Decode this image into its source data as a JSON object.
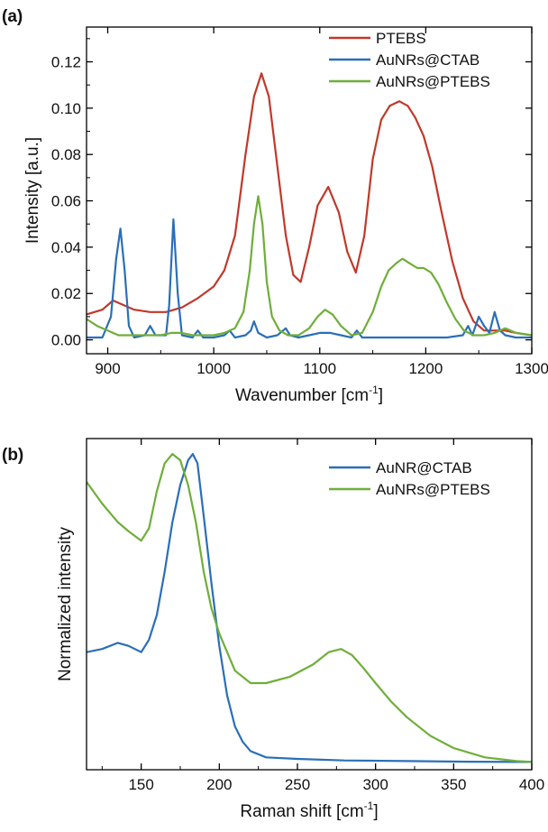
{
  "colors": {
    "red": "#c0392b",
    "blue": "#2a6fb8",
    "green": "#6fae3a",
    "axis": "#000000"
  },
  "chart_data": [
    {
      "type": "line",
      "panel_label": "(a)",
      "xlabel": "Wavenumber [cm",
      "xlabel_sup": "-1",
      "xlabel_end": "]",
      "ylabel": "Intensity [a.u.]",
      "xlim": [
        880,
        1300
      ],
      "ylim": [
        -0.006,
        0.135
      ],
      "x_ticks": [
        900,
        1000,
        1100,
        1200,
        1300
      ],
      "x_tick_labels": [
        "900",
        "1000",
        "1100",
        "1200",
        "1300"
      ],
      "y_ticks": [
        0.0,
        0.02,
        0.04,
        0.06,
        0.08,
        0.1,
        0.12
      ],
      "y_tick_labels": [
        "0.00",
        "0.02",
        "0.04",
        "0.06",
        "0.08",
        "0.10",
        "0.12"
      ],
      "legend_position": "top-right",
      "series": [
        {
          "name": "PTEBS",
          "color_key": "red",
          "x": [
            880,
            895,
            905,
            915,
            925,
            940,
            955,
            970,
            985,
            1000,
            1010,
            1020,
            1030,
            1038,
            1045,
            1052,
            1060,
            1068,
            1075,
            1082,
            1090,
            1098,
            1108,
            1118,
            1126,
            1134,
            1142,
            1150,
            1158,
            1166,
            1175,
            1183,
            1190,
            1198,
            1206,
            1215,
            1225,
            1235,
            1245,
            1255,
            1265,
            1275,
            1285,
            1300
          ],
          "y": [
            0.011,
            0.013,
            0.017,
            0.015,
            0.013,
            0.012,
            0.012,
            0.014,
            0.018,
            0.023,
            0.03,
            0.045,
            0.08,
            0.105,
            0.115,
            0.105,
            0.075,
            0.045,
            0.028,
            0.025,
            0.04,
            0.058,
            0.066,
            0.055,
            0.038,
            0.029,
            0.045,
            0.078,
            0.095,
            0.101,
            0.103,
            0.101,
            0.096,
            0.088,
            0.075,
            0.055,
            0.034,
            0.018,
            0.008,
            0.004,
            0.004,
            0.004,
            0.003,
            0.002
          ]
        },
        {
          "name": "AuNRs@CTAB",
          "color_key": "blue",
          "x": [
            880,
            895,
            903,
            908,
            912,
            916,
            920,
            925,
            935,
            940,
            945,
            955,
            958,
            962,
            966,
            970,
            980,
            985,
            990,
            1000,
            1010,
            1015,
            1020,
            1030,
            1035,
            1038,
            1042,
            1050,
            1060,
            1068,
            1072,
            1080,
            1090,
            1100,
            1110,
            1120,
            1130,
            1135,
            1140,
            1150,
            1170,
            1200,
            1220,
            1235,
            1240,
            1244,
            1250,
            1255,
            1260,
            1265,
            1270,
            1275,
            1285,
            1300
          ],
          "y": [
            0.001,
            0.001,
            0.01,
            0.035,
            0.048,
            0.03,
            0.006,
            0.001,
            0.002,
            0.006,
            0.002,
            0.002,
            0.015,
            0.052,
            0.02,
            0.002,
            0.001,
            0.004,
            0.001,
            0.001,
            0.002,
            0.004,
            0.001,
            0.002,
            0.004,
            0.008,
            0.003,
            0.001,
            0.002,
            0.005,
            0.002,
            0.001,
            0.002,
            0.003,
            0.003,
            0.002,
            0.001,
            0.004,
            0.001,
            0.001,
            0.001,
            0.001,
            0.001,
            0.002,
            0.006,
            0.002,
            0.01,
            0.006,
            0.003,
            0.012,
            0.004,
            0.002,
            0.001,
            0.001
          ]
        },
        {
          "name": "AuNRs@PTEBS",
          "color_key": "green",
          "x": [
            880,
            890,
            900,
            910,
            920,
            930,
            940,
            950,
            960,
            970,
            980,
            1000,
            1010,
            1020,
            1028,
            1034,
            1038,
            1042,
            1046,
            1050,
            1055,
            1062,
            1070,
            1080,
            1090,
            1098,
            1105,
            1112,
            1120,
            1130,
            1140,
            1150,
            1158,
            1165,
            1172,
            1178,
            1185,
            1192,
            1198,
            1205,
            1212,
            1220,
            1228,
            1236,
            1245,
            1255,
            1265,
            1275,
            1285,
            1300
          ],
          "y": [
            0.009,
            0.006,
            0.004,
            0.002,
            0.002,
            0.002,
            0.002,
            0.002,
            0.003,
            0.003,
            0.002,
            0.002,
            0.003,
            0.005,
            0.012,
            0.03,
            0.05,
            0.062,
            0.05,
            0.025,
            0.01,
            0.004,
            0.002,
            0.002,
            0.005,
            0.01,
            0.013,
            0.011,
            0.006,
            0.002,
            0.003,
            0.012,
            0.023,
            0.03,
            0.033,
            0.035,
            0.033,
            0.031,
            0.031,
            0.029,
            0.024,
            0.016,
            0.009,
            0.004,
            0.002,
            0.002,
            0.003,
            0.005,
            0.003,
            0.002
          ]
        }
      ]
    },
    {
      "type": "line",
      "panel_label": "(b)",
      "xlabel": "Raman shift [cm",
      "xlabel_sup": "-1",
      "xlabel_end": "]",
      "ylabel": "Normalized intensity",
      "xlim": [
        115,
        400
      ],
      "ylim": [
        -0.02,
        1.05
      ],
      "x_ticks": [
        150,
        200,
        250,
        300,
        350,
        400
      ],
      "x_tick_labels": [
        "150",
        "200",
        "250",
        "300",
        "350",
        "400"
      ],
      "y_ticks": [],
      "y_tick_labels": [],
      "legend_position": "top-right",
      "series": [
        {
          "name": "AuNR@CTAB",
          "color_key": "blue",
          "x": [
            115,
            125,
            135,
            142,
            150,
            155,
            160,
            165,
            170,
            175,
            180,
            183,
            186,
            190,
            195,
            200,
            205,
            210,
            215,
            220,
            230,
            250,
            280,
            320,
            360,
            400
          ],
          "y": [
            0.36,
            0.37,
            0.39,
            0.38,
            0.36,
            0.4,
            0.48,
            0.62,
            0.78,
            0.9,
            0.98,
            1.0,
            0.97,
            0.8,
            0.58,
            0.38,
            0.22,
            0.12,
            0.07,
            0.04,
            0.02,
            0.015,
            0.01,
            0.008,
            0.006,
            0.005
          ]
        },
        {
          "name": "AuNRs@PTEBS",
          "color_key": "green",
          "x": [
            115,
            125,
            135,
            142,
            150,
            155,
            160,
            165,
            170,
            175,
            180,
            185,
            190,
            195,
            200,
            210,
            220,
            230,
            245,
            260,
            270,
            278,
            285,
            292,
            300,
            310,
            320,
            335,
            350,
            370,
            390,
            400
          ],
          "y": [
            0.91,
            0.84,
            0.78,
            0.75,
            0.72,
            0.76,
            0.88,
            0.97,
            1.0,
            0.98,
            0.9,
            0.78,
            0.62,
            0.5,
            0.42,
            0.3,
            0.26,
            0.26,
            0.28,
            0.32,
            0.36,
            0.37,
            0.35,
            0.31,
            0.26,
            0.2,
            0.15,
            0.09,
            0.05,
            0.02,
            0.008,
            0.005
          ]
        }
      ]
    }
  ]
}
